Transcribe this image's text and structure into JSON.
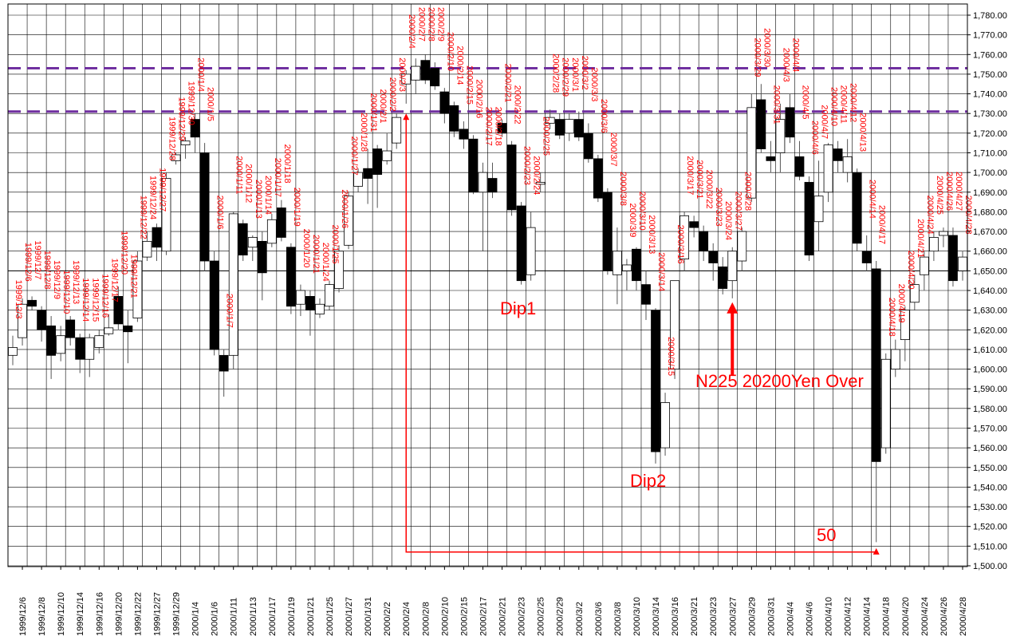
{
  "chart_data": {
    "type": "candlestick",
    "title": "",
    "xlabel": "",
    "ylabel": "",
    "ylim": [
      1500,
      1780
    ],
    "ytick_step": 10,
    "grid": true,
    "legend": "none",
    "colors": {
      "up_body": "#ffffff",
      "down_body": "#000000",
      "wick": "#555555",
      "grid": "#000000",
      "label": "#ff0000",
      "resistance": "#7030a0",
      "arrow": "#ff0000"
    },
    "x_tick_labels": [
      "1999/12/6",
      "1999/12/8",
      "1999/12/10",
      "1999/12/14",
      "1999/12/16",
      "1999/12/20",
      "1999/12/22",
      "1999/12/27",
      "1999/12/29",
      "2000/1/4",
      "2000/1/6",
      "2000/1/11",
      "2000/1/13",
      "2000/1/17",
      "2000/1/19",
      "2000/1/21",
      "2000/1/25",
      "2000/1/27",
      "2000/1/31",
      "2000/2/2",
      "2000/2/4",
      "2000/2/8",
      "2000/2/10",
      "2000/2/15",
      "2000/2/17",
      "2000/2/21",
      "2000/2/23",
      "2000/2/25",
      "2000/2/29",
      "2000/3/2",
      "2000/3/6",
      "2000/3/8",
      "2000/3/10",
      "2000/3/14",
      "2000/3/16",
      "2000/3/21",
      "2000/3/23",
      "2000/3/27",
      "2000/3/29",
      "2000/3/31",
      "2000/4/4",
      "2000/4/6",
      "2000/4/10",
      "2000/4/12",
      "2000/4/14",
      "2000/4/18",
      "2000/4/20",
      "2000/4/24",
      "2000/4/26",
      "2000/4/28"
    ],
    "candles": [
      {
        "date": "1999/12/3",
        "open": 1607,
        "high": 1617,
        "low": 1602,
        "close": 1611
      },
      {
        "date": "1999/12/6",
        "open": 1616,
        "high": 1636,
        "low": 1612,
        "close": 1633
      },
      {
        "date": "1999/12/7",
        "open": 1635,
        "high": 1637,
        "low": 1630,
        "close": 1632
      },
      {
        "date": "1999/12/8",
        "open": 1630,
        "high": 1632,
        "low": 1614,
        "close": 1620
      },
      {
        "date": "1999/12/9",
        "open": 1622,
        "high": 1627,
        "low": 1595,
        "close": 1607
      },
      {
        "date": "1999/12/10",
        "open": 1608,
        "high": 1622,
        "low": 1604,
        "close": 1617
      },
      {
        "date": "1999/12/13",
        "open": 1625,
        "high": 1627,
        "low": 1612,
        "close": 1616
      },
      {
        "date": "1999/12/14",
        "open": 1616,
        "high": 1618,
        "low": 1598,
        "close": 1605
      },
      {
        "date": "1999/12/15",
        "open": 1605,
        "high": 1618,
        "low": 1596,
        "close": 1616
      },
      {
        "date": "1999/12/16",
        "open": 1611,
        "high": 1620,
        "low": 1608,
        "close": 1617
      },
      {
        "date": "1999/12/17",
        "open": 1618,
        "high": 1628,
        "low": 1617,
        "close": 1621
      },
      {
        "date": "1999/12/20",
        "open": 1637,
        "high": 1642,
        "low": 1620,
        "close": 1623
      },
      {
        "date": "1999/12/21",
        "open": 1622,
        "high": 1630,
        "low": 1603,
        "close": 1619
      },
      {
        "date": "1999/12/22",
        "open": 1626,
        "high": 1660,
        "low": 1624,
        "close": 1655
      },
      {
        "date": "1999/12/24",
        "open": 1657,
        "high": 1670,
        "low": 1655,
        "close": 1665
      },
      {
        "date": "1999/12/27",
        "open": 1672,
        "high": 1674,
        "low": 1655,
        "close": 1662
      },
      {
        "date": "1999/12/28",
        "open": 1660,
        "high": 1700,
        "low": 1658,
        "close": 1697
      },
      {
        "date": "1999/12/29",
        "open": 1706,
        "high": 1710,
        "low": 1704,
        "close": 1709
      },
      {
        "date": "1999/12/30",
        "open": 1714,
        "high": 1718,
        "low": 1707,
        "close": 1716
      },
      {
        "date": "2000/1/4",
        "open": 1727,
        "high": 1730,
        "low": 1710,
        "close": 1718
      },
      {
        "date": "2000/1/5",
        "open": 1710,
        "high": 1715,
        "low": 1650,
        "close": 1655
      },
      {
        "date": "2000/1/6",
        "open": 1655,
        "high": 1660,
        "low": 1607,
        "close": 1610
      },
      {
        "date": "2000/1/7",
        "open": 1607,
        "high": 1610,
        "low": 1586,
        "close": 1599
      },
      {
        "date": "2000/1/11",
        "open": 1607,
        "high": 1680,
        "low": 1600,
        "close": 1679
      },
      {
        "date": "2000/1/12",
        "open": 1674,
        "high": 1676,
        "low": 1655,
        "close": 1658
      },
      {
        "date": "2000/1/13",
        "open": 1662,
        "high": 1668,
        "low": 1655,
        "close": 1667
      },
      {
        "date": "2000/1/14",
        "open": 1665,
        "high": 1670,
        "low": 1635,
        "close": 1649
      },
      {
        "date": "2000/1/17",
        "open": 1664,
        "high": 1679,
        "low": 1662,
        "close": 1676
      },
      {
        "date": "2000/1/18",
        "open": 1682,
        "high": 1686,
        "low": 1665,
        "close": 1667
      },
      {
        "date": "2000/1/19",
        "open": 1662,
        "high": 1664,
        "low": 1628,
        "close": 1632
      },
      {
        "date": "2000/1/20",
        "open": 1633,
        "high": 1643,
        "low": 1627,
        "close": 1640
      },
      {
        "date": "2000/1/21",
        "open": 1637,
        "high": 1640,
        "low": 1617,
        "close": 1630
      },
      {
        "date": "2000/1/24",
        "open": 1628,
        "high": 1636,
        "low": 1626,
        "close": 1633
      },
      {
        "date": "2000/1/25",
        "open": 1632,
        "high": 1645,
        "low": 1630,
        "close": 1643
      },
      {
        "date": "2000/1/26",
        "open": 1641,
        "high": 1663,
        "low": 1639,
        "close": 1660
      },
      {
        "date": "2000/1/27",
        "open": 1663,
        "high": 1690,
        "low": 1661,
        "close": 1688
      },
      {
        "date": "2000/1/28",
        "open": 1693,
        "high": 1702,
        "low": 1690,
        "close": 1700
      },
      {
        "date": "2000/1/31",
        "open": 1702,
        "high": 1712,
        "low": 1684,
        "close": 1697
      },
      {
        "date": "2000/2/1",
        "open": 1712,
        "high": 1714,
        "low": 1682,
        "close": 1699
      },
      {
        "date": "2000/2/2",
        "open": 1706,
        "high": 1720,
        "low": 1704,
        "close": 1711
      },
      {
        "date": "2000/2/3",
        "open": 1715,
        "high": 1730,
        "low": 1712,
        "close": 1728
      },
      {
        "date": "2000/2/4",
        "open": 1745,
        "high": 1752,
        "low": 1735,
        "close": 1750
      },
      {
        "date": "2000/2/7",
        "open": 1747,
        "high": 1758,
        "low": 1740,
        "close": 1754
      },
      {
        "date": "2000/2/8",
        "open": 1757,
        "high": 1760,
        "low": 1745,
        "close": 1747
      },
      {
        "date": "2000/2/9",
        "open": 1753,
        "high": 1756,
        "low": 1742,
        "close": 1744
      },
      {
        "date": "2000/2/10",
        "open": 1741,
        "high": 1743,
        "low": 1725,
        "close": 1730
      },
      {
        "date": "2000/2/14",
        "open": 1734,
        "high": 1736,
        "low": 1718,
        "close": 1721
      },
      {
        "date": "2000/2/15",
        "open": 1722,
        "high": 1726,
        "low": 1712,
        "close": 1717
      },
      {
        "date": "2000/2/16",
        "open": 1717,
        "high": 1719,
        "low": 1689,
        "close": 1690
      },
      {
        "date": "2000/2/17",
        "open": 1690,
        "high": 1705,
        "low": 1660,
        "close": 1700
      },
      {
        "date": "2000/2/18",
        "open": 1697,
        "high": 1705,
        "low": 1687,
        "close": 1690
      },
      {
        "date": "2000/2/21",
        "open": 1725,
        "high": 1727,
        "low": 1718,
        "close": 1720
      },
      {
        "date": "2000/2/22",
        "open": 1714,
        "high": 1716,
        "low": 1678,
        "close": 1681
      },
      {
        "date": "2000/2/23",
        "open": 1683,
        "high": 1685,
        "low": 1643,
        "close": 1645
      },
      {
        "date": "2000/2/24",
        "open": 1648,
        "high": 1680,
        "low": 1645,
        "close": 1672
      },
      {
        "date": "2000/2/25",
        "open": 1694,
        "high": 1700,
        "low": 1690,
        "close": 1695
      },
      {
        "date": "2000/2/28",
        "open": 1725,
        "high": 1732,
        "low": 1722,
        "close": 1728
      },
      {
        "date": "2000/2/29",
        "open": 1727,
        "high": 1730,
        "low": 1717,
        "close": 1719
      },
      {
        "date": "2000/3/1",
        "open": 1720,
        "high": 1730,
        "low": 1716,
        "close": 1727
      },
      {
        "date": "2000/3/2",
        "open": 1727,
        "high": 1731,
        "low": 1716,
        "close": 1718
      },
      {
        "date": "2000/3/3",
        "open": 1720,
        "high": 1725,
        "low": 1705,
        "close": 1707
      },
      {
        "date": "2000/3/6",
        "open": 1707,
        "high": 1709,
        "low": 1685,
        "close": 1687
      },
      {
        "date": "2000/3/7",
        "open": 1690,
        "high": 1692,
        "low": 1648,
        "close": 1650
      },
      {
        "date": "2000/3/8",
        "open": 1648,
        "high": 1672,
        "low": 1633,
        "close": 1660
      },
      {
        "date": "2000/3/9",
        "open": 1650,
        "high": 1656,
        "low": 1640,
        "close": 1653
      },
      {
        "date": "2000/3/10",
        "open": 1661,
        "high": 1662,
        "low": 1640,
        "close": 1645
      },
      {
        "date": "2000/3/13",
        "open": 1643,
        "high": 1650,
        "low": 1625,
        "close": 1633
      },
      {
        "date": "2000/3/14",
        "open": 1630,
        "high": 1631,
        "low": 1552,
        "close": 1558
      },
      {
        "date": "2000/3/15",
        "open": 1560,
        "high": 1588,
        "low": 1556,
        "close": 1583
      },
      {
        "date": "2000/3/16",
        "open": 1600,
        "high": 1645,
        "low": 1595,
        "close": 1645
      },
      {
        "date": "2000/3/17",
        "open": 1656,
        "high": 1680,
        "low": 1650,
        "close": 1678
      },
      {
        "date": "2000/3/21",
        "open": 1675,
        "high": 1678,
        "low": 1667,
        "close": 1672
      },
      {
        "date": "2000/3/22",
        "open": 1670,
        "high": 1673,
        "low": 1655,
        "close": 1660
      },
      {
        "date": "2000/3/23",
        "open": 1660,
        "high": 1664,
        "low": 1645,
        "close": 1654
      },
      {
        "date": "2000/3/24",
        "open": 1652,
        "high": 1657,
        "low": 1638,
        "close": 1641
      },
      {
        "date": "2000/3/27",
        "open": 1645,
        "high": 1662,
        "low": 1636,
        "close": 1660
      },
      {
        "date": "2000/3/28",
        "open": 1655,
        "high": 1672,
        "low": 1650,
        "close": 1670
      },
      {
        "date": "2000/3/29",
        "open": 1687,
        "high": 1740,
        "low": 1685,
        "close": 1733
      },
      {
        "date": "2000/3/30",
        "open": 1737,
        "high": 1745,
        "low": 1710,
        "close": 1712
      },
      {
        "date": "2000/3/31",
        "open": 1708,
        "high": 1716,
        "low": 1700,
        "close": 1706
      },
      {
        "date": "2000/4/3",
        "open": 1710,
        "high": 1735,
        "low": 1700,
        "close": 1727
      },
      {
        "date": "2000/4/4",
        "open": 1733,
        "high": 1740,
        "low": 1715,
        "close": 1718
      },
      {
        "date": "2000/4/5",
        "open": 1708,
        "high": 1716,
        "low": 1696,
        "close": 1698
      },
      {
        "date": "2000/4/6",
        "open": 1695,
        "high": 1698,
        "low": 1655,
        "close": 1658
      },
      {
        "date": "2000/4/7",
        "open": 1675,
        "high": 1706,
        "low": 1660,
        "close": 1688
      },
      {
        "date": "2000/4/10",
        "open": 1690,
        "high": 1715,
        "low": 1685,
        "close": 1714
      },
      {
        "date": "2000/4/11",
        "open": 1712,
        "high": 1716,
        "low": 1700,
        "close": 1706
      },
      {
        "date": "2000/4/12",
        "open": 1700,
        "high": 1717,
        "low": 1695,
        "close": 1708
      },
      {
        "date": "2000/4/13",
        "open": 1700,
        "high": 1702,
        "low": 1660,
        "close": 1664
      },
      {
        "date": "2000/4/14",
        "open": 1660,
        "high": 1668,
        "low": 1650,
        "close": 1654
      },
      {
        "date": "2000/4/17",
        "open": 1651,
        "high": 1655,
        "low": 1512,
        "close": 1553
      },
      {
        "date": "2000/4/18",
        "open": 1560,
        "high": 1608,
        "low": 1557,
        "close": 1605
      },
      {
        "date": "2000/4/19",
        "open": 1600,
        "high": 1615,
        "low": 1596,
        "close": 1610
      },
      {
        "date": "2000/4/20",
        "open": 1615,
        "high": 1632,
        "low": 1604,
        "close": 1630
      },
      {
        "date": "2000/4/21",
        "open": 1634,
        "high": 1648,
        "low": 1630,
        "close": 1643
      },
      {
        "date": "2000/4/24",
        "open": 1648,
        "high": 1660,
        "low": 1640,
        "close": 1657
      },
      {
        "date": "2000/4/25",
        "open": 1660,
        "high": 1670,
        "low": 1655,
        "close": 1667
      },
      {
        "date": "2000/4/26",
        "open": 1668,
        "high": 1672,
        "low": 1662,
        "close": 1670
      },
      {
        "date": "2000/4/27",
        "open": 1668,
        "high": 1672,
        "low": 1642,
        "close": 1645
      },
      {
        "date": "2000/4/28",
        "open": 1650,
        "high": 1660,
        "low": 1645,
        "close": 1657
      }
    ],
    "horizontal_lines": [
      {
        "value": 1753,
        "style": "dashed",
        "color": "#7030a0"
      },
      {
        "value": 1731,
        "style": "dashed",
        "color": "#7030a0"
      },
      {
        "value": 1650,
        "style": "solid",
        "color": "#000000"
      }
    ],
    "annotations": {
      "dip1": "Dip1",
      "dip2": "Dip2",
      "n225": "N225 20200Yen Over",
      "fifty": "50"
    },
    "arrow_path": {
      "from_date": "2000/2/4",
      "to_date": "2000/4/17",
      "from_value": 1730,
      "to_value": 1509,
      "baseline": 1507
    },
    "up_arrow": {
      "date": "2000/3/27",
      "from_value": 1597,
      "to_value": 1634
    }
  }
}
